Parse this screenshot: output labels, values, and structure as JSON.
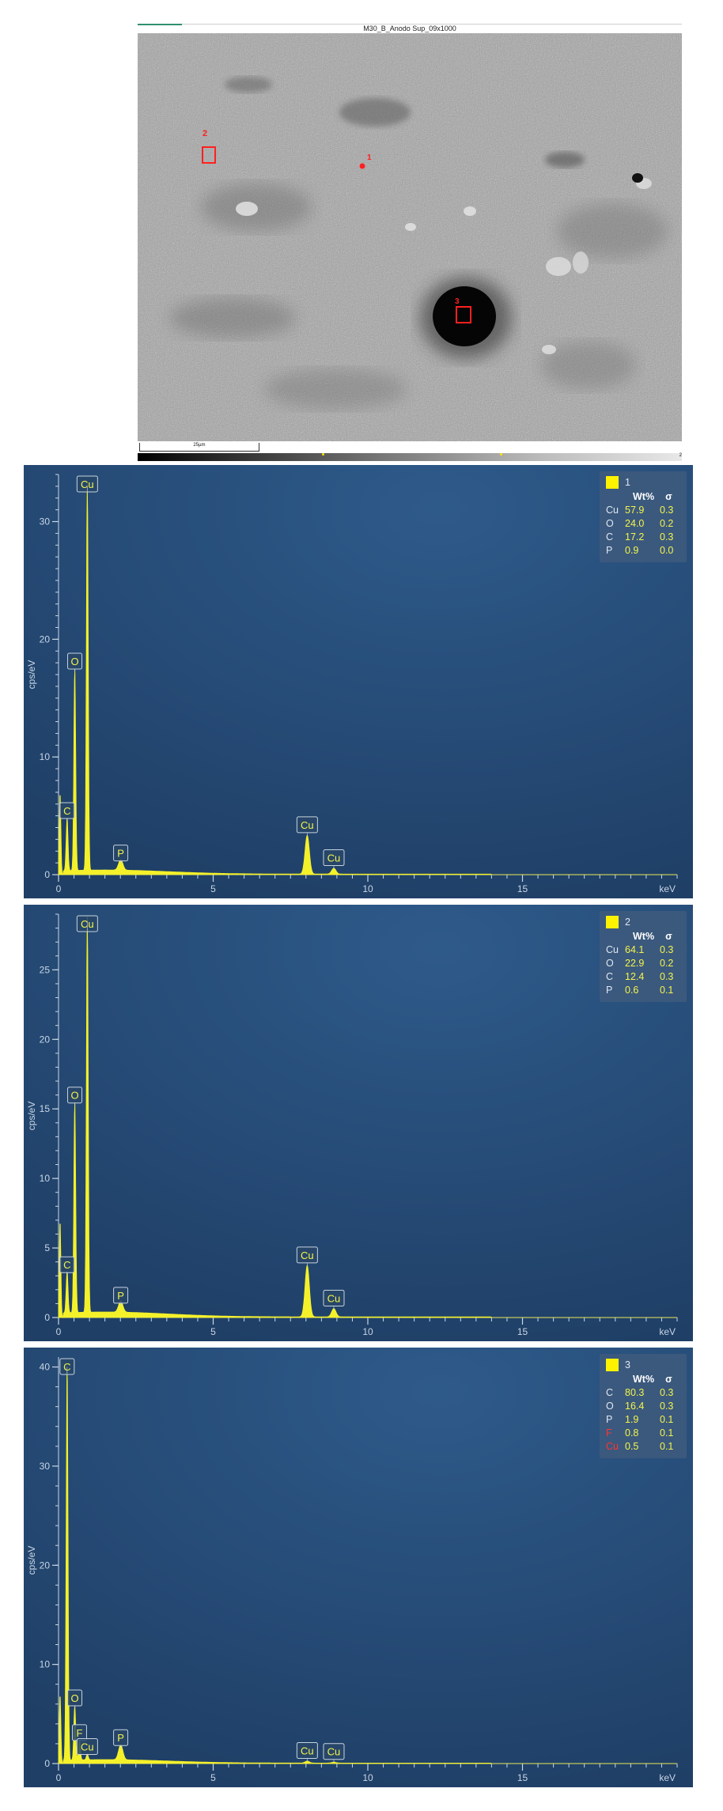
{
  "sem": {
    "title": "M30_B_Anodo Sup_09x1000",
    "scale_bar": "25µm",
    "graybar_max": "2",
    "markers": [
      {
        "label": "1",
        "type": "point"
      },
      {
        "label": "2",
        "type": "area"
      },
      {
        "label": "3",
        "type": "area"
      }
    ]
  },
  "colors": {
    "panel_bg": "#1f3f66",
    "spectrum": "#f4f12a",
    "axis_text": "#c9d6e6",
    "marker_red": "#ff2020",
    "legend_red": "#ff3333"
  },
  "chart_data": [
    {
      "type": "line",
      "spectrum_id": "1",
      "xlabel": "keV",
      "ylabel": "cps/eV",
      "xlim": [
        0,
        20
      ],
      "ylim": [
        0,
        34
      ],
      "xticks": [
        0,
        5,
        10,
        15
      ],
      "yticks": [
        0,
        10,
        20,
        30
      ],
      "series": [
        {
          "name": "1"
        }
      ],
      "peaks": [
        {
          "element": "C",
          "kev": 0.277,
          "height": 4.5
        },
        {
          "element": "O",
          "kev": 0.525,
          "height": 17.2
        },
        {
          "element": "Cu",
          "kev": 0.93,
          "height": 33.0
        },
        {
          "element": "P",
          "kev": 2.01,
          "height": 0.9
        },
        {
          "element": "Cu",
          "kev": 8.04,
          "height": 3.3
        },
        {
          "element": "Cu",
          "kev": 8.9,
          "height": 0.5
        }
      ],
      "peak_labels": [
        {
          "element": "Cu",
          "kev": 0.93
        },
        {
          "element": "O",
          "kev": 0.525
        },
        {
          "element": "C",
          "kev": 0.277
        },
        {
          "element": "P",
          "kev": 2.01
        },
        {
          "element": "Cu",
          "kev": 8.04
        },
        {
          "element": "Cu",
          "kev": 8.9
        }
      ],
      "table": {
        "header": [
          "Wt%",
          "σ"
        ],
        "rows": [
          {
            "el": "Cu",
            "wt": "57.9",
            "sigma": "0.3",
            "red": false
          },
          {
            "el": "O",
            "wt": "24.0",
            "sigma": "0.2",
            "red": false
          },
          {
            "el": "C",
            "wt": "17.2",
            "sigma": "0.3",
            "red": false
          },
          {
            "el": "P",
            "wt": "0.9",
            "sigma": "0.0",
            "red": false
          }
        ]
      }
    },
    {
      "type": "line",
      "spectrum_id": "2",
      "xlabel": "keV",
      "ylabel": "cps/eV",
      "xlim": [
        0,
        20
      ],
      "ylim": [
        0,
        29
      ],
      "xticks": [
        0,
        5,
        10,
        15
      ],
      "yticks": [
        0,
        5,
        10,
        15,
        20,
        25
      ],
      "series": [
        {
          "name": "2"
        }
      ],
      "peaks": [
        {
          "element": "C",
          "kev": 0.277,
          "height": 3.0
        },
        {
          "element": "O",
          "kev": 0.525,
          "height": 15.2
        },
        {
          "element": "Cu",
          "kev": 0.93,
          "height": 28.5
        },
        {
          "element": "P",
          "kev": 2.01,
          "height": 0.8
        },
        {
          "element": "Cu",
          "kev": 8.04,
          "height": 3.7
        },
        {
          "element": "Cu",
          "kev": 8.9,
          "height": 0.6
        }
      ],
      "peak_labels": [
        {
          "element": "Cu",
          "kev": 0.93
        },
        {
          "element": "O",
          "kev": 0.525
        },
        {
          "element": "C",
          "kev": 0.277
        },
        {
          "element": "P",
          "kev": 2.01
        },
        {
          "element": "Cu",
          "kev": 8.04
        },
        {
          "element": "Cu",
          "kev": 8.9
        }
      ],
      "table": {
        "header": [
          "Wt%",
          "σ"
        ],
        "rows": [
          {
            "el": "Cu",
            "wt": "64.1",
            "sigma": "0.3",
            "red": false
          },
          {
            "el": "O",
            "wt": "22.9",
            "sigma": "0.2",
            "red": false
          },
          {
            "el": "C",
            "wt": "12.4",
            "sigma": "0.3",
            "red": false
          },
          {
            "el": "P",
            "wt": "0.6",
            "sigma": "0.1",
            "red": false
          }
        ]
      }
    },
    {
      "type": "line",
      "spectrum_id": "3",
      "xlabel": "keV",
      "ylabel": "cps/eV",
      "xlim": [
        0,
        20
      ],
      "ylim": [
        0,
        41
      ],
      "xticks": [
        0,
        5,
        10,
        15
      ],
      "yticks": [
        0,
        10,
        20,
        30,
        40
      ],
      "series": [
        {
          "name": "3"
        }
      ],
      "peaks": [
        {
          "element": "C",
          "kev": 0.277,
          "height": 40.0
        },
        {
          "element": "O",
          "kev": 0.525,
          "height": 5.5
        },
        {
          "element": "F",
          "kev": 0.677,
          "height": 2.0
        },
        {
          "element": "Cu",
          "kev": 0.93,
          "height": 0.6
        },
        {
          "element": "P",
          "kev": 2.01,
          "height": 1.5
        },
        {
          "element": "Cu",
          "kev": 8.04,
          "height": 0.2
        },
        {
          "element": "Cu",
          "kev": 8.9,
          "height": 0.1
        }
      ],
      "peak_labels": [
        {
          "element": "C",
          "kev": 0.277
        },
        {
          "element": "O",
          "kev": 0.525
        },
        {
          "element": "F",
          "kev": 0.677
        },
        {
          "element": "Cu",
          "kev": 0.93
        },
        {
          "element": "P",
          "kev": 2.01
        },
        {
          "element": "Cu",
          "kev": 8.04
        },
        {
          "element": "Cu",
          "kev": 8.9
        }
      ],
      "table": {
        "header": [
          "Wt%",
          "σ"
        ],
        "rows": [
          {
            "el": "C",
            "wt": "80.3",
            "sigma": "0.3",
            "red": false
          },
          {
            "el": "O",
            "wt": "16.4",
            "sigma": "0.3",
            "red": false
          },
          {
            "el": "P",
            "wt": "1.9",
            "sigma": "0.1",
            "red": false
          },
          {
            "el": "F",
            "wt": "0.8",
            "sigma": "0.1",
            "red": true
          },
          {
            "el": "Cu",
            "wt": "0.5",
            "sigma": "0.1",
            "red": true
          }
        ]
      }
    }
  ]
}
